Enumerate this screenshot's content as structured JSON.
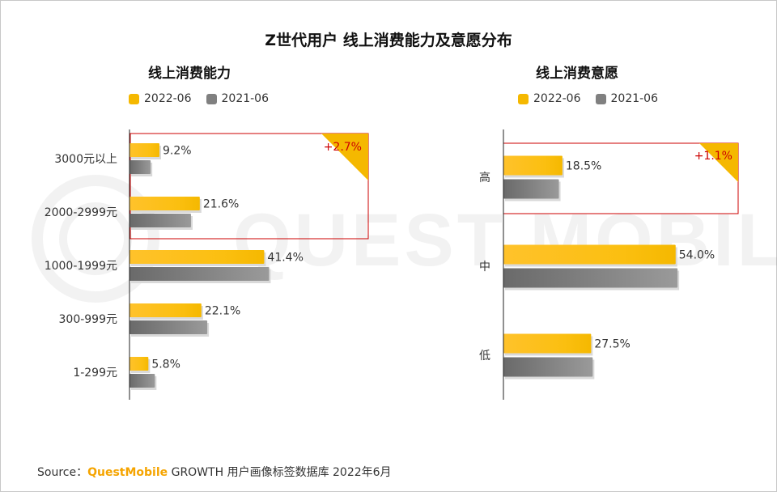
{
  "title": "Z世代用户 线上消费能力及意愿分布",
  "watermark": "QUEST MOBILE",
  "colors": {
    "y2022": "#f5b800",
    "y2021": "#808080",
    "highlight": "#cc0000"
  },
  "source": {
    "prefix": "Source：",
    "brand": "QuestMobile",
    "rest": " GROWTH 用户画像标签数据库 2022年6月"
  },
  "chart_data": [
    {
      "type": "bar",
      "orientation": "horizontal",
      "title": "线上消费能力",
      "legend": [
        "2022-06",
        "2021-06"
      ],
      "categories": [
        "3000元以上",
        "2000-2999元",
        "1000-1999元",
        "300-999元",
        "1-299元"
      ],
      "series": [
        {
          "name": "2022-06",
          "values": [
            9.2,
            21.6,
            41.4,
            22.1,
            5.8
          ],
          "labels": [
            "9.2%",
            "21.6%",
            "41.4%",
            "22.1%",
            "5.8%"
          ]
        },
        {
          "name": "2021-06",
          "values": [
            6.5,
            18.9,
            42.9,
            23.9,
            7.8
          ]
        }
      ],
      "callout": "+2.7%"
    },
    {
      "type": "bar",
      "orientation": "horizontal",
      "title": "线上消费意愿",
      "legend": [
        "2022-06",
        "2021-06"
      ],
      "categories": [
        "高",
        "中",
        "低"
      ],
      "series": [
        {
          "name": "2022-06",
          "values": [
            18.5,
            54.0,
            27.5
          ],
          "labels": [
            "18.5%",
            "54.0%",
            "27.5%"
          ]
        },
        {
          "name": "2021-06",
          "values": [
            17.4,
            54.6,
            28.0
          ]
        }
      ],
      "callout": "+1.1%"
    }
  ]
}
